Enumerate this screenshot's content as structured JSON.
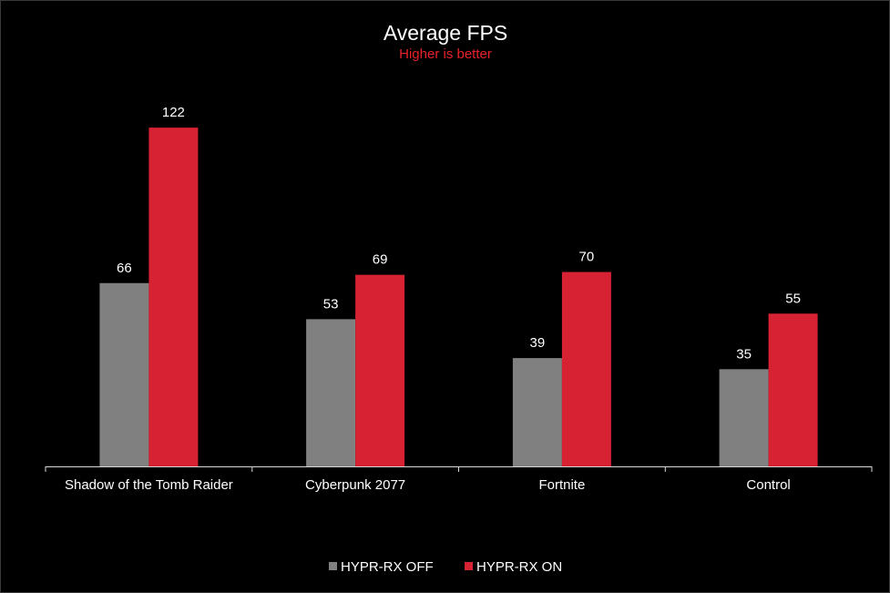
{
  "chart_data": {
    "type": "bar",
    "title": "Average FPS",
    "subtitle": "Higher  is better",
    "categories": [
      "Shadow of the Tomb Raider",
      "Cyberpunk 2077",
      "Fortnite",
      "Control"
    ],
    "series": [
      {
        "name": "HYPR-RX OFF",
        "values": [
          66,
          53,
          39,
          35
        ],
        "color": "#808080"
      },
      {
        "name": "HYPR-RX ON",
        "values": [
          122,
          69,
          70,
          55
        ],
        "color": "#d62232"
      }
    ],
    "ylim": [
      0,
      124
    ],
    "grid": false,
    "legend_position": "bottom-center",
    "subtitle_color": "#e8212b",
    "axis_color": "#d9d9d9",
    "background_color": "#000000"
  }
}
